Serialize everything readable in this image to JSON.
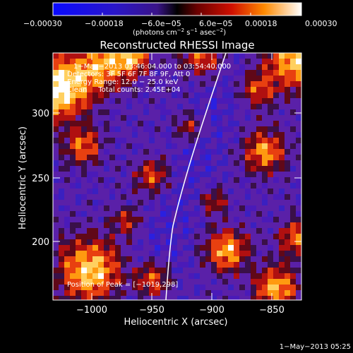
{
  "colorbar": {
    "ticks": [
      "−0.00030",
      "−0.00018",
      "−6.0e−05",
      "6.0e−05",
      "0.00018",
      "0.00030"
    ],
    "unit_a": "(photons cm",
    "unit_a_sup": "−2",
    "unit_b": " s",
    "unit_b_sup": "−1",
    "unit_c": " asec",
    "unit_c_sup": "−2",
    "unit_d": ")"
  },
  "title": "Reconstructed RHESSI Image",
  "info": {
    "line1": "1−May−2013 03:46:04.000 to 03:54:40.000",
    "line2": "Detectors: 3F 5F 6F 7F 8F 9F, Att 0",
    "line3": "Energy Range: 12.0 − 25.0 keV",
    "line4": "Clean     Total counts: 2.45E+04",
    "peak": "Position of Peak = [−1019,298]"
  },
  "axes": {
    "xlabel": "Heliocentric X (arcsec)",
    "ylabel": "Heliocentric Y (arcsec)",
    "x_ticks": [
      "−1000",
      "−950",
      "−900",
      "−850"
    ],
    "y_ticks": [
      "300",
      "250",
      "200"
    ]
  },
  "timestamp": "1−May−2013 05:25",
  "colors": {
    "background": "#000000",
    "text": "#ffffff",
    "map_base": "#5a20a8",
    "limb": "#ffffff"
  }
}
